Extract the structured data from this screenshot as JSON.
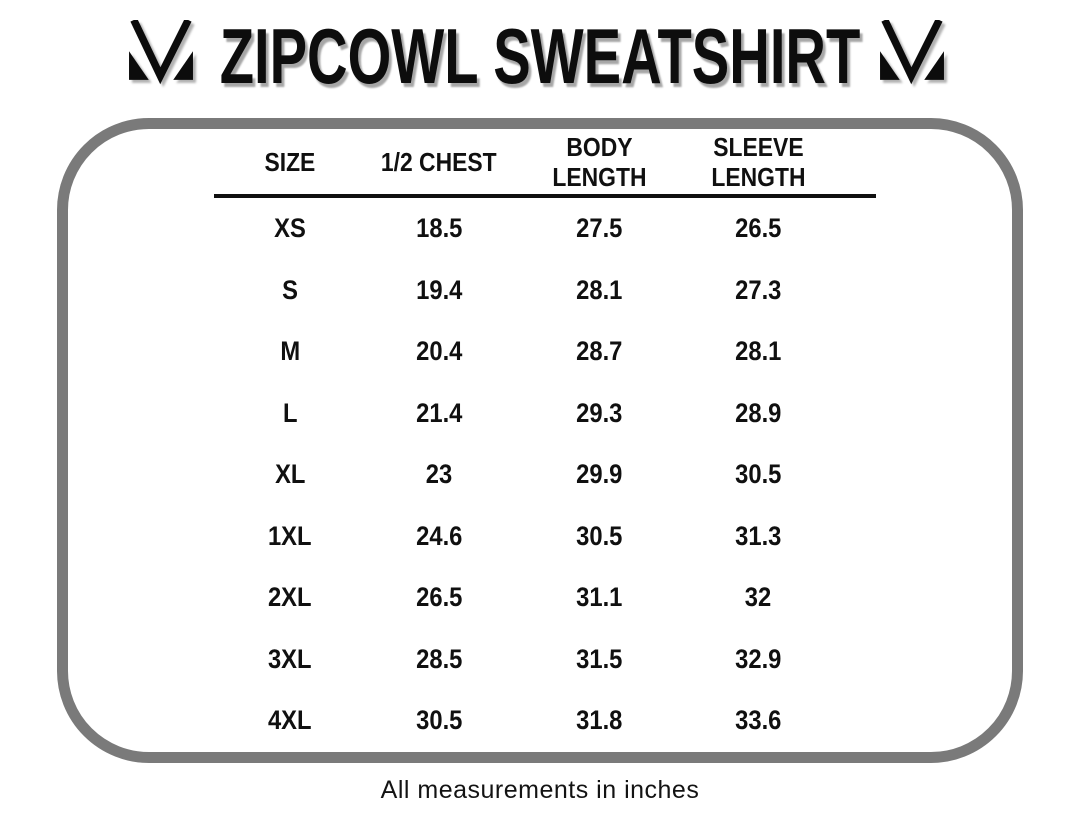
{
  "chart_data": {
    "type": "table",
    "title": "ZIPCOWL SWEATSHIRT",
    "columns": [
      "SIZE",
      "1/2 CHEST",
      "BODY LENGTH",
      "SLEEVE LENGTH"
    ],
    "rows": [
      [
        "XS",
        18.5,
        27.5,
        26.5
      ],
      [
        "S",
        19.4,
        28.1,
        27.3
      ],
      [
        "M",
        20.4,
        28.7,
        28.1
      ],
      [
        "L",
        21.4,
        29.3,
        28.9
      ],
      [
        "XL",
        23,
        29.9,
        30.5
      ],
      [
        "1XL",
        24.6,
        30.5,
        31.3
      ],
      [
        "2XL",
        26.5,
        31.1,
        32
      ],
      [
        "3XL",
        28.5,
        31.5,
        32.9
      ],
      [
        "4XL",
        30.5,
        31.8,
        33.6
      ]
    ],
    "footnote": "All measurements in inches",
    "units": "inches",
    "layout": {
      "grid": "off",
      "header_rule": "on"
    }
  },
  "ui": {
    "column_labels": [
      "SIZE",
      "1/2 CHEST",
      "BODY\nLENGTH",
      "SLEEVE\nLENGTH"
    ],
    "logo_name": "m-brand-mark",
    "colors": {
      "panel_border": "#7a7a7a",
      "text": "#101010",
      "title_shadow_gray": "#a6a6a6",
      "background": "#ffffff"
    }
  }
}
